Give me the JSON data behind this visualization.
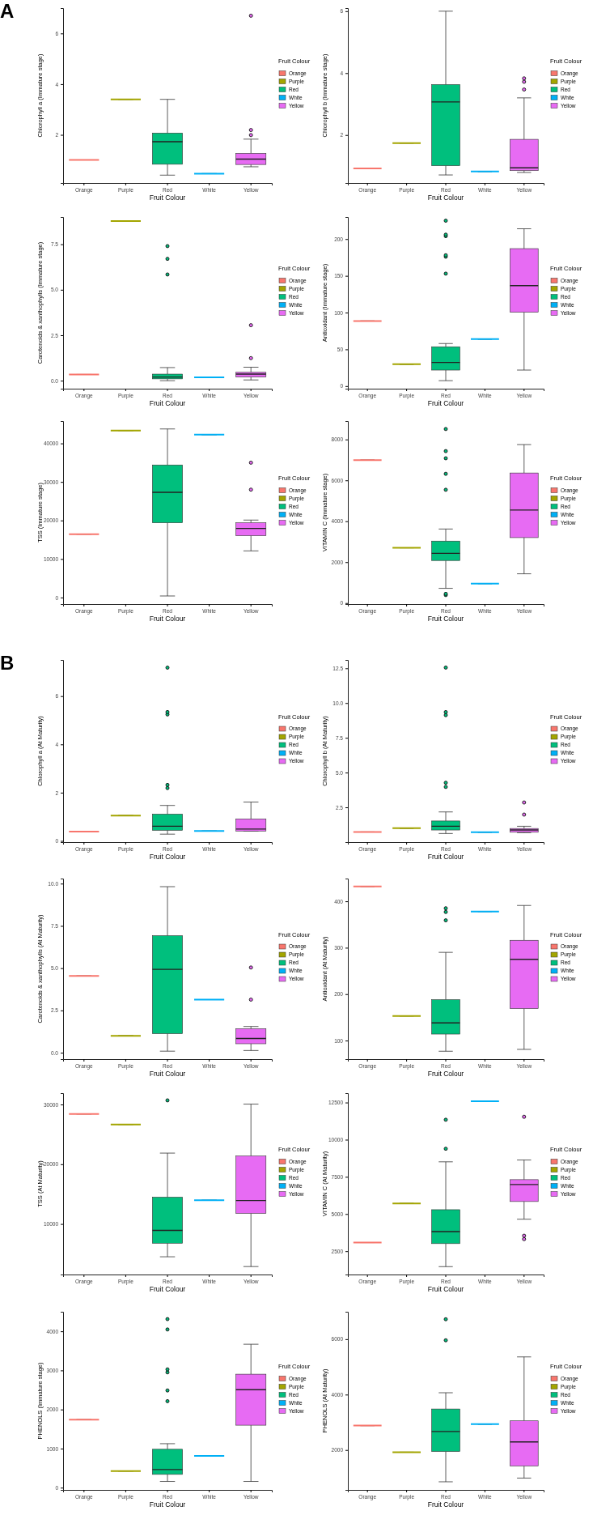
{
  "chart_data": [
    {
      "type": "box",
      "annotations": [
        "A"
      ],
      "xlabel": "Fruit Colour",
      "ylabel": "Chlorophyll a (Immature stage)",
      "legend_title": "Fruit Colour",
      "legend": "right",
      "categories": [
        "Orange",
        "Purple",
        "Red",
        "White",
        "Yellow"
      ],
      "ylim": [
        0.1,
        7.0
      ],
      "yticks": [
        2,
        4,
        6
      ],
      "series": [
        {
          "name": "Orange",
          "color": "#f8766d",
          "boxes": [
            {
              "low": 1.01,
              "q1": 1.01,
              "median": 1.01,
              "q3": 1.01,
              "high": 1.01
            },
            null,
            null,
            null,
            null
          ]
        },
        {
          "name": "Purple",
          "color": "#a3a500",
          "boxes": [
            null,
            {
              "low": 3.4,
              "q1": 3.4,
              "median": 3.4,
              "q3": 3.4,
              "high": 3.4
            },
            null,
            null,
            null
          ]
        },
        {
          "name": "Red",
          "color": "#00bf7d",
          "boxes": [
            null,
            null,
            {
              "low": 0.41,
              "q1": 0.84,
              "median": 1.73,
              "q3": 2.07,
              "high": 3.4
            },
            null,
            null
          ]
        },
        {
          "name": "White",
          "color": "#00b0f6",
          "boxes": [
            null,
            null,
            null,
            {
              "low": 0.47,
              "q1": 0.47,
              "median": 0.47,
              "q3": 0.47,
              "high": 0.47
            },
            null
          ]
        },
        {
          "name": "Yellow",
          "color": "#e76bf3",
          "boxes": [
            null,
            null,
            null,
            null,
            {
              "low": 0.74,
              "q1": 0.83,
              "median": 1.04,
              "q3": 1.27,
              "high": 1.83,
              "outliers": [
                1.99,
                2.19,
                6.7
              ]
            }
          ]
        }
      ]
    },
    {
      "type": "box",
      "xlabel": "Fruit Colour",
      "ylabel": "Chlorophyll b (Immature stage)",
      "legend_title": "Fruit Colour",
      "legend": "right",
      "categories": [
        "Orange",
        "Purple",
        "Red",
        "White",
        "Yellow"
      ],
      "ylim": [
        0.45,
        6.1
      ],
      "yticks": [
        2,
        4,
        6
      ],
      "series": [
        {
          "name": "Orange",
          "color": "#f8766d",
          "boxes": [
            {
              "low": 0.92,
              "q1": 0.92,
              "median": 0.92,
              "q3": 0.92,
              "high": 0.92
            },
            null,
            null,
            null,
            null
          ]
        },
        {
          "name": "Purple",
          "color": "#a3a500",
          "boxes": [
            null,
            {
              "low": 1.74,
              "q1": 1.74,
              "median": 1.74,
              "q3": 1.74,
              "high": 1.74
            },
            null,
            null,
            null
          ]
        },
        {
          "name": "Red",
          "color": "#00bf7d",
          "boxes": [
            null,
            null,
            {
              "low": 0.71,
              "q1": 1.01,
              "median": 3.07,
              "q3": 3.63,
              "high": 6.0
            },
            null,
            null
          ]
        },
        {
          "name": "White",
          "color": "#00b0f6",
          "boxes": [
            null,
            null,
            null,
            {
              "low": 0.82,
              "q1": 0.82,
              "median": 0.82,
              "q3": 0.82,
              "high": 0.82
            },
            null
          ]
        },
        {
          "name": "Yellow",
          "color": "#e76bf3",
          "boxes": [
            null,
            null,
            null,
            null,
            {
              "low": 0.79,
              "q1": 0.85,
              "median": 0.94,
              "q3": 1.86,
              "high": 3.2,
              "outliers": [
                3.47,
                3.72,
                3.83
              ]
            }
          ]
        }
      ]
    },
    {
      "type": "box",
      "xlabel": "Fruit Colour",
      "ylabel": "Carotenoids & xanthophylls (Immature stage)",
      "legend_title": "Fruit Colour",
      "legend": "right",
      "categories": [
        "Orange",
        "Purple",
        "Red",
        "White",
        "Yellow"
      ],
      "ylim": [
        -0.44,
        9.0
      ],
      "yticks": [
        {
          "value": 0,
          "label": "0.0"
        },
        {
          "value": 2.5,
          "label": "2.5"
        },
        {
          "value": 5,
          "label": "5.0"
        },
        {
          "value": 7.5,
          "label": "7.5"
        }
      ],
      "series": [
        {
          "name": "Orange",
          "color": "#f8766d",
          "boxes": [
            {
              "low": 0.34,
              "q1": 0.34,
              "median": 0.34,
              "q3": 0.34,
              "high": 0.34
            },
            null,
            null,
            null,
            null
          ]
        },
        {
          "name": "Purple",
          "color": "#a3a500",
          "boxes": [
            null,
            {
              "low": 8.78,
              "q1": 8.78,
              "median": 8.78,
              "q3": 8.78,
              "high": 8.78
            },
            null,
            null,
            null
          ]
        },
        {
          "name": "Red",
          "color": "#00bf7d",
          "boxes": [
            null,
            null,
            {
              "low": 0.0,
              "q1": 0.1,
              "median": 0.2,
              "q3": 0.36,
              "high": 0.72,
              "outliers": [
                5.84,
                6.7,
                7.4
              ]
            },
            null,
            null
          ]
        },
        {
          "name": "White",
          "color": "#00b0f6",
          "boxes": [
            null,
            null,
            null,
            {
              "low": 0.18,
              "q1": 0.18,
              "median": 0.18,
              "q3": 0.18,
              "high": 0.18
            },
            null
          ]
        },
        {
          "name": "Yellow",
          "color": "#e76bf3",
          "boxes": [
            null,
            null,
            null,
            null,
            {
              "low": 0.04,
              "q1": 0.2,
              "median": 0.36,
              "q3": 0.46,
              "high": 0.74,
              "outliers": [
                1.24,
                3.05
              ]
            }
          ]
        }
      ]
    },
    {
      "type": "box",
      "xlabel": "Fruit Colour",
      "ylabel": "Antioxidant (Immature stage)",
      "legend_title": "Fruit Colour",
      "legend": "right",
      "categories": [
        "Orange",
        "Purple",
        "Red",
        "White",
        "Yellow"
      ],
      "ylim": [
        -3.5,
        230
      ],
      "yticks": [
        0,
        50,
        100,
        150,
        200
      ],
      "series": [
        {
          "name": "Orange",
          "color": "#f8766d",
          "boxes": [
            {
              "low": 88.6,
              "q1": 88.6,
              "median": 88.6,
              "q3": 88.6,
              "high": 88.6
            },
            null,
            null,
            null,
            null
          ]
        },
        {
          "name": "Purple",
          "color": "#a3a500",
          "boxes": [
            null,
            {
              "low": 29.7,
              "q1": 29.7,
              "median": 29.7,
              "q3": 29.7,
              "high": 29.7
            },
            null,
            null,
            null
          ]
        },
        {
          "name": "Red",
          "color": "#00bf7d",
          "boxes": [
            null,
            null,
            {
              "low": 7.4,
              "q1": 21.8,
              "median": 32.2,
              "q3": 53.5,
              "high": 57.9,
              "outliers": [
                153,
                176,
                178,
                204,
                206,
                225
              ]
            },
            null,
            null
          ]
        },
        {
          "name": "White",
          "color": "#00b0f6",
          "boxes": [
            null,
            null,
            null,
            {
              "low": 63.9,
              "q1": 63.9,
              "median": 63.9,
              "q3": 63.9,
              "high": 63.9
            },
            null
          ]
        },
        {
          "name": "Yellow",
          "color": "#e76bf3",
          "boxes": [
            null,
            null,
            null,
            null,
            {
              "low": 21.8,
              "q1": 100.5,
              "median": 136.6,
              "q3": 187,
              "high": 214
            }
          ]
        }
      ]
    },
    {
      "type": "box",
      "xlabel": "Fruit Colour",
      "ylabel": "TSS (Immature stage)",
      "legend_title": "Fruit Colour",
      "legend": "right",
      "categories": [
        "Orange",
        "Purple",
        "Red",
        "White",
        "Yellow"
      ],
      "ylim": [
        -1700,
        45800
      ],
      "yticks": [
        0,
        10000,
        20000,
        30000,
        40000
      ],
      "series": [
        {
          "name": "Orange",
          "color": "#f8766d",
          "boxes": [
            {
              "low": 16450,
              "q1": 16450,
              "median": 16450,
              "q3": 16450,
              "high": 16450
            },
            null,
            null,
            null,
            null
          ]
        },
        {
          "name": "Purple",
          "color": "#a3a500",
          "boxes": [
            null,
            {
              "low": 43350,
              "q1": 43350,
              "median": 43350,
              "q3": 43350,
              "high": 43350
            },
            null,
            null,
            null
          ]
        },
        {
          "name": "Red",
          "color": "#00bf7d",
          "boxes": [
            null,
            null,
            {
              "low": 400,
              "q1": 19400,
              "median": 27300,
              "q3": 34400,
              "high": 43750
            },
            null,
            null
          ]
        },
        {
          "name": "White",
          "color": "#00b0f6",
          "boxes": [
            null,
            null,
            null,
            {
              "low": 42270,
              "q1": 42270,
              "median": 42270,
              "q3": 42270,
              "high": 42270
            },
            null
          ]
        },
        {
          "name": "Yellow",
          "color": "#e76bf3",
          "boxes": [
            null,
            null,
            null,
            null,
            {
              "low": 12100,
              "q1": 16060,
              "median": 17930,
              "q3": 19400,
              "high": 20100,
              "outliers": [
                28000,
                35000
              ]
            }
          ]
        }
      ]
    },
    {
      "type": "box",
      "xlabel": "Fruit Colour",
      "ylabel": "VITAMIN C  (Immature stage)",
      "legend_title": "Fruit Colour",
      "legend": "right",
      "categories": [
        "Orange",
        "Purple",
        "Red",
        "White",
        "Yellow"
      ],
      "ylim": [
        -50,
        8900
      ],
      "yticks": [
        0,
        2000,
        4000,
        6000,
        8000
      ],
      "series": [
        {
          "name": "Orange",
          "color": "#f8766d",
          "boxes": [
            {
              "low": 6990,
              "q1": 6990,
              "median": 6990,
              "q3": 6990,
              "high": 6990
            },
            null,
            null,
            null,
            null
          ]
        },
        {
          "name": "Purple",
          "color": "#a3a500",
          "boxes": [
            null,
            {
              "low": 2700,
              "q1": 2700,
              "median": 2700,
              "q3": 2700,
              "high": 2700
            },
            null,
            null,
            null
          ]
        },
        {
          "name": "Red",
          "color": "#00bf7d",
          "boxes": [
            null,
            null,
            {
              "low": 720,
              "q1": 2080,
              "median": 2430,
              "q3": 3030,
              "high": 3620,
              "outliers": [
                390,
                450,
                5540,
                6320,
                7080,
                7430,
                8510
              ]
            },
            null,
            null
          ]
        },
        {
          "name": "White",
          "color": "#00b0f6",
          "boxes": [
            null,
            null,
            null,
            {
              "low": 950,
              "q1": 950,
              "median": 950,
              "q3": 950,
              "high": 950
            },
            null
          ]
        },
        {
          "name": "Yellow",
          "color": "#e76bf3",
          "boxes": [
            null,
            null,
            null,
            null,
            {
              "low": 1430,
              "q1": 3200,
              "median": 4550,
              "q3": 6360,
              "high": 7750
            }
          ]
        }
      ]
    },
    {
      "type": "box",
      "annotations": [
        "B"
      ],
      "xlabel": "Fruit Colour",
      "ylabel": "Chlorophyll a (At Maturity)",
      "legend_title": "Fruit Colour",
      "legend": "right",
      "categories": [
        "Orange",
        "Purple",
        "Red",
        "White",
        "Yellow"
      ],
      "ylim": [
        -0.05,
        7.5
      ],
      "yticks": [
        0,
        2,
        4,
        6
      ],
      "series": [
        {
          "name": "Orange",
          "color": "#f8766d",
          "boxes": [
            {
              "low": 0.39,
              "q1": 0.39,
              "median": 0.39,
              "q3": 0.39,
              "high": 0.39
            },
            null,
            null,
            null,
            null
          ]
        },
        {
          "name": "Purple",
          "color": "#a3a500",
          "boxes": [
            null,
            {
              "low": 1.05,
              "q1": 1.05,
              "median": 1.05,
              "q3": 1.05,
              "high": 1.05
            },
            null,
            null,
            null
          ]
        },
        {
          "name": "Red",
          "color": "#00bf7d",
          "boxes": [
            null,
            null,
            {
              "low": 0.28,
              "q1": 0.44,
              "median": 0.61,
              "q3": 1.11,
              "high": 1.47,
              "outliers": [
                2.19,
                2.32,
                5.24,
                5.34,
                7.18
              ]
            },
            null,
            null
          ]
        },
        {
          "name": "White",
          "color": "#00b0f6",
          "boxes": [
            null,
            null,
            null,
            {
              "low": 0.41,
              "q1": 0.41,
              "median": 0.41,
              "q3": 0.41,
              "high": 0.41
            },
            null
          ]
        },
        {
          "name": "Yellow",
          "color": "#e76bf3",
          "boxes": [
            null,
            null,
            null,
            null,
            {
              "low": 0.41,
              "q1": 0.41,
              "median": 0.49,
              "q3": 0.91,
              "high": 1.61
            }
          ]
        }
      ]
    },
    {
      "type": "box",
      "xlabel": "Fruit Colour",
      "ylabel": "Chlorophyll b (At Maturity)",
      "legend_title": "Fruit Colour",
      "legend": "right",
      "categories": [
        "Orange",
        "Purple",
        "Red",
        "White",
        "Yellow"
      ],
      "ylim": [
        0,
        13.1
      ],
      "yticks": [
        {
          "value": 2.5,
          "label": "2.5"
        },
        {
          "value": 5,
          "label": "5.0"
        },
        {
          "value": 7.5,
          "label": "7.5"
        },
        {
          "value": 10,
          "label": "10.0"
        },
        {
          "value": 12.5,
          "label": "12.5"
        }
      ],
      "series": [
        {
          "name": "Orange",
          "color": "#f8766d",
          "boxes": [
            {
              "low": 0.73,
              "q1": 0.73,
              "median": 0.73,
              "q3": 0.73,
              "high": 0.73
            },
            null,
            null,
            null,
            null
          ]
        },
        {
          "name": "Purple",
          "color": "#a3a500",
          "boxes": [
            null,
            {
              "low": 1.0,
              "q1": 1.0,
              "median": 1.0,
              "q3": 1.0,
              "high": 1.0
            },
            null,
            null,
            null
          ]
        },
        {
          "name": "Red",
          "color": "#00bf7d",
          "boxes": [
            null,
            null,
            {
              "low": 0.62,
              "q1": 0.87,
              "median": 1.14,
              "q3": 1.52,
              "high": 2.17,
              "outliers": [
                3.97,
                4.27,
                9.13,
                9.35,
                12.55
              ]
            },
            null,
            null
          ]
        },
        {
          "name": "White",
          "color": "#00b0f6",
          "boxes": [
            null,
            null,
            null,
            {
              "low": 0.71,
              "q1": 0.71,
              "median": 0.71,
              "q3": 0.71,
              "high": 0.71
            },
            null
          ]
        },
        {
          "name": "Yellow",
          "color": "#e76bf3",
          "boxes": [
            null,
            null,
            null,
            null,
            {
              "low": 0.68,
              "q1": 0.71,
              "median": 0.87,
              "q3": 0.98,
              "high": 1.14,
              "outliers": [
                1.98,
                2.85
              ]
            }
          ]
        }
      ]
    },
    {
      "type": "box",
      "xlabel": "Fruit Colour",
      "ylabel": "Carotenoids & xanthophylls (At Maturity)",
      "legend_title": "Fruit Colour",
      "legend": "right",
      "categories": [
        "Orange",
        "Purple",
        "Red",
        "White",
        "Yellow"
      ],
      "ylim": [
        -0.38,
        10.3
      ],
      "yticks": [
        {
          "value": 0,
          "label": "0.0"
        },
        {
          "value": 2.5,
          "label": "2.5"
        },
        {
          "value": 5,
          "label": "5.0"
        },
        {
          "value": 7.5,
          "label": "7.5"
        },
        {
          "value": 10,
          "label": "10.0"
        }
      ],
      "series": [
        {
          "name": "Orange",
          "color": "#f8766d",
          "boxes": [
            {
              "low": 4.54,
              "q1": 4.54,
              "median": 4.54,
              "q3": 4.54,
              "high": 4.54
            },
            null,
            null,
            null,
            null
          ]
        },
        {
          "name": "Purple",
          "color": "#a3a500",
          "boxes": [
            null,
            {
              "low": 1.0,
              "q1": 1.0,
              "median": 1.0,
              "q3": 1.0,
              "high": 1.0
            },
            null,
            null,
            null
          ]
        },
        {
          "name": "Red",
          "color": "#00bf7d",
          "boxes": [
            null,
            null,
            {
              "low": 0.09,
              "q1": 1.13,
              "median": 4.93,
              "q3": 6.92,
              "high": 9.82
            },
            null,
            null
          ]
        },
        {
          "name": "White",
          "color": "#00b0f6",
          "boxes": [
            null,
            null,
            null,
            {
              "low": 3.14,
              "q1": 3.14,
              "median": 3.14,
              "q3": 3.14,
              "high": 3.14
            },
            null
          ]
        },
        {
          "name": "Yellow",
          "color": "#e76bf3",
          "boxes": [
            null,
            null,
            null,
            null,
            {
              "low": 0.13,
              "q1": 0.53,
              "median": 0.84,
              "q3": 1.42,
              "high": 1.55,
              "outliers": [
                3.14,
                5.04
              ]
            }
          ]
        }
      ]
    },
    {
      "type": "box",
      "xlabel": "Fruit Colour",
      "ylabel": "Antioxidant (At Maturity)",
      "legend_title": "Fruit Colour",
      "legend": "right",
      "categories": [
        "Orange",
        "Purple",
        "Red",
        "White",
        "Yellow"
      ],
      "ylim": [
        60,
        449
      ],
      "yticks": [
        100,
        200,
        300,
        400
      ],
      "series": [
        {
          "name": "Orange",
          "color": "#f8766d",
          "boxes": [
            {
              "low": 432,
              "q1": 432,
              "median": 432,
              "q3": 432,
              "high": 432
            },
            null,
            null,
            null,
            null
          ]
        },
        {
          "name": "Purple",
          "color": "#a3a500",
          "boxes": [
            null,
            {
              "low": 153,
              "q1": 153,
              "median": 153,
              "q3": 153,
              "high": 153
            },
            null,
            null,
            null
          ]
        },
        {
          "name": "Red",
          "color": "#00bf7d",
          "boxes": [
            null,
            null,
            {
              "low": 77,
              "q1": 114,
              "median": 138,
              "q3": 188,
              "high": 290,
              "outliers": [
                359,
                377,
                385
              ]
            },
            null,
            null
          ]
        },
        {
          "name": "White",
          "color": "#00b0f6",
          "boxes": [
            null,
            null,
            null,
            {
              "low": 378,
              "q1": 378,
              "median": 378,
              "q3": 378,
              "high": 378
            },
            null
          ]
        },
        {
          "name": "Yellow",
          "color": "#e76bf3",
          "boxes": [
            null,
            null,
            null,
            null,
            {
              "low": 81,
              "q1": 169,
              "median": 275,
              "q3": 316,
              "high": 391
            }
          ]
        }
      ]
    },
    {
      "type": "box",
      "xlabel": "Fruit Colour",
      "ylabel": "TSS (At Maturity)",
      "legend_title": "Fruit Colour",
      "legend": "right",
      "categories": [
        "Orange",
        "Purple",
        "Red",
        "White",
        "Yellow"
      ],
      "ylim": [
        1540,
        31900
      ],
      "yticks": [
        10000,
        20000,
        30000
      ],
      "series": [
        {
          "name": "Orange",
          "color": "#f8766d",
          "boxes": [
            {
              "low": 28420,
              "q1": 28420,
              "median": 28420,
              "q3": 28420,
              "high": 28420
            },
            null,
            null,
            null,
            null
          ]
        },
        {
          "name": "Purple",
          "color": "#a3a500",
          "boxes": [
            null,
            {
              "low": 26660,
              "q1": 26660,
              "median": 26660,
              "q3": 26660,
              "high": 26660
            },
            null,
            null,
            null
          ]
        },
        {
          "name": "Red",
          "color": "#00bf7d",
          "boxes": [
            null,
            null,
            {
              "low": 4510,
              "q1": 6780,
              "median": 8930,
              "q3": 14480,
              "high": 21860,
              "outliers": [
                30690
              ]
            },
            null,
            null
          ]
        },
        {
          "name": "White",
          "color": "#00b0f6",
          "boxes": [
            null,
            null,
            null,
            {
              "low": 13970,
              "q1": 13970,
              "median": 13970,
              "q3": 13970,
              "high": 13970
            },
            null
          ]
        },
        {
          "name": "Yellow",
          "color": "#e76bf3",
          "boxes": [
            null,
            null,
            null,
            null,
            {
              "low": 2870,
              "q1": 11770,
              "median": 13920,
              "q3": 21370,
              "high": 30060
            }
          ]
        }
      ]
    },
    {
      "type": "box",
      "xlabel": "Fruit Colour",
      "ylabel": "VITAMIN C (At Maturity)",
      "legend_title": "Fruit Colour",
      "legend": "right",
      "categories": [
        "Orange",
        "Purple",
        "Red",
        "White",
        "Yellow"
      ],
      "ylim": [
        930,
        13130
      ],
      "yticks": [
        2500,
        5000,
        7500,
        10000,
        12500
      ],
      "series": [
        {
          "name": "Orange",
          "color": "#f8766d",
          "boxes": [
            {
              "low": 3080,
              "q1": 3080,
              "median": 3080,
              "q3": 3080,
              "high": 3080
            },
            null,
            null,
            null,
            null
          ]
        },
        {
          "name": "Purple",
          "color": "#a3a500",
          "boxes": [
            null,
            {
              "low": 5710,
              "q1": 5710,
              "median": 5710,
              "q3": 5710,
              "high": 5710
            },
            null,
            null,
            null
          ]
        },
        {
          "name": "Red",
          "color": "#00bf7d",
          "boxes": [
            null,
            null,
            {
              "low": 1460,
              "q1": 3010,
              "median": 3820,
              "q3": 5290,
              "high": 8510,
              "outliers": [
                9390,
                11340
              ]
            },
            null,
            null
          ]
        },
        {
          "name": "White",
          "color": "#00b0f6",
          "boxes": [
            null,
            null,
            null,
            {
              "low": 12580,
              "q1": 12580,
              "median": 12580,
              "q3": 12580,
              "high": 12580
            },
            null
          ]
        },
        {
          "name": "Yellow",
          "color": "#e76bf3",
          "boxes": [
            null,
            null,
            null,
            null,
            {
              "low": 4650,
              "q1": 5840,
              "median": 6980,
              "q3": 7310,
              "high": 8630,
              "outliers": [
                3310,
                3540,
                11540
              ]
            }
          ]
        }
      ]
    },
    {
      "type": "box",
      "xlabel": "Fruit Colour",
      "ylabel": "PHENOLS (Immature stage)",
      "legend_title": "Fruit Colour",
      "legend": "right",
      "categories": [
        "Orange",
        "Purple",
        "Red",
        "White",
        "Yellow"
      ],
      "ylim": [
        -57,
        4500
      ],
      "yticks": [
        0,
        1000,
        2000,
        3000,
        4000
      ],
      "series": [
        {
          "name": "Orange",
          "color": "#f8766d",
          "boxes": [
            {
              "low": 1740,
              "q1": 1740,
              "median": 1740,
              "q3": 1740,
              "high": 1740
            },
            null,
            null,
            null,
            null
          ]
        },
        {
          "name": "Purple",
          "color": "#a3a500",
          "boxes": [
            null,
            {
              "low": 426,
              "q1": 426,
              "median": 426,
              "q3": 426,
              "high": 426
            },
            null,
            null,
            null
          ]
        },
        {
          "name": "Red",
          "color": "#00bf7d",
          "boxes": [
            null,
            null,
            {
              "low": 160,
              "q1": 340,
              "median": 463,
              "q3": 983,
              "high": 1125,
              "outliers": [
                2213,
                2487,
                2950,
                3026,
                4047,
                4312
              ]
            },
            null,
            null
          ]
        },
        {
          "name": "White",
          "color": "#00b0f6",
          "boxes": [
            null,
            null,
            null,
            {
              "low": 813,
              "q1": 813,
              "median": 813,
              "q3": 813,
              "high": 813
            },
            null
          ]
        },
        {
          "name": "Yellow",
          "color": "#e76bf3",
          "boxes": [
            null,
            null,
            null,
            null,
            {
              "low": 160,
              "q1": 1598,
              "median": 2506,
              "q3": 2903,
              "high": 3669
            }
          ]
        }
      ]
    },
    {
      "type": "box",
      "xlabel": "Fruit Colour",
      "ylabel": "PHENOLS (At Maturity)",
      "legend_title": "Fruit Colour",
      "legend": "right",
      "categories": [
        "Orange",
        "Purple",
        "Red",
        "White",
        "Yellow"
      ],
      "ylim": [
        560,
        6990
      ],
      "yticks": [
        2000,
        4000,
        6000
      ],
      "series": [
        {
          "name": "Orange",
          "color": "#f8766d",
          "boxes": [
            {
              "low": 2880,
              "q1": 2880,
              "median": 2880,
              "q3": 2880,
              "high": 2880
            },
            null,
            null,
            null,
            null
          ]
        },
        {
          "name": "Purple",
          "color": "#a3a500",
          "boxes": [
            null,
            {
              "low": 1920,
              "q1": 1920,
              "median": 1920,
              "q3": 1920,
              "high": 1920
            },
            null,
            null,
            null
          ]
        },
        {
          "name": "Red",
          "color": "#00bf7d",
          "boxes": [
            null,
            null,
            {
              "low": 853,
              "q1": 1947,
              "median": 2667,
              "q3": 3480,
              "high": 4067,
              "outliers": [
                5960,
                6720
              ]
            },
            null,
            null
          ]
        },
        {
          "name": "White",
          "color": "#00b0f6",
          "boxes": [
            null,
            null,
            null,
            {
              "low": 2933,
              "q1": 2933,
              "median": 2933,
              "q3": 2933,
              "high": 2933
            },
            null
          ]
        },
        {
          "name": "Yellow",
          "color": "#e76bf3",
          "boxes": [
            null,
            null,
            null,
            null,
            {
              "low": 987,
              "q1": 1427,
              "median": 2293,
              "q3": 3053,
              "high": 5360
            }
          ]
        }
      ]
    }
  ]
}
